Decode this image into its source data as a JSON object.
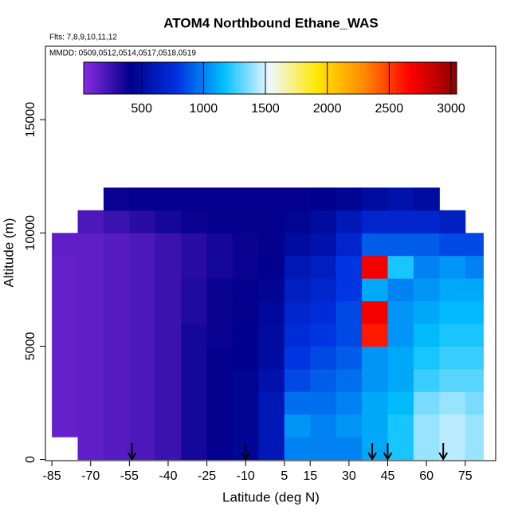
{
  "chart_data": {
    "type": "heatmap",
    "title": "ATOM4 Northbound Ethane_WAS",
    "subtitle": "Flts: 7,8,9,10,11,12",
    "annotation": "MMDD: 0509,0512,0514,0517,0518,0519",
    "x_label": "Latitude (deg N)",
    "y_label": "Altitude (m)",
    "xlim": [
      -87.5,
      86.8
    ],
    "ylim": [
      -50,
      18240
    ],
    "xticks": [
      -85,
      -70,
      -55,
      -40,
      -25,
      -10,
      5,
      15,
      30,
      45,
      60,
      75
    ],
    "yticks": [
      0,
      5000,
      10000,
      15000
    ],
    "x_edges": [
      -85,
      -75,
      -65,
      -55,
      -45,
      -35,
      -25,
      -15,
      -5,
      5,
      15,
      25,
      35,
      45,
      55,
      65,
      75,
      82
    ],
    "y_edges": [
      0,
      1000,
      2000,
      3000,
      4000,
      5000,
      6000,
      7000,
      8000,
      9000,
      10000,
      11000,
      12000
    ],
    "z": [
      [
        null,
        150,
        170,
        200,
        250,
        350,
        400,
        450,
        600,
        1000,
        1000,
        1000,
        1100,
        1200,
        1400,
        1450,
        1400
      ],
      [
        130,
        150,
        170,
        200,
        250,
        350,
        400,
        450,
        600,
        1050,
        1000,
        1050,
        1100,
        1200,
        1400,
        1450,
        1400
      ],
      [
        130,
        150,
        170,
        200,
        250,
        350,
        400,
        450,
        600,
        950,
        950,
        1000,
        1100,
        1150,
        1350,
        1400,
        1350
      ],
      [
        130,
        150,
        170,
        200,
        250,
        350,
        400,
        450,
        550,
        850,
        900,
        950,
        1050,
        1100,
        1250,
        1300,
        1300
      ],
      [
        130,
        150,
        170,
        200,
        250,
        350,
        400,
        420,
        500,
        800,
        850,
        900,
        1050,
        1100,
        1200,
        1250,
        1250
      ],
      [
        130,
        150,
        170,
        200,
        250,
        350,
        380,
        420,
        500,
        750,
        800,
        850,
        2600,
        1050,
        1150,
        1200,
        1200
      ],
      [
        130,
        150,
        170,
        200,
        250,
        320,
        380,
        400,
        480,
        700,
        750,
        850,
        2700,
        1050,
        1100,
        1150,
        1150
      ],
      [
        130,
        150,
        170,
        200,
        250,
        320,
        380,
        400,
        450,
        650,
        700,
        800,
        1100,
        1000,
        1050,
        1100,
        1100
      ],
      [
        130,
        150,
        170,
        200,
        250,
        300,
        350,
        380,
        420,
        600,
        650,
        800,
        2700,
        1200,
        1000,
        1050,
        1000
      ],
      [
        150,
        150,
        170,
        200,
        250,
        300,
        350,
        380,
        400,
        500,
        550,
        700,
        900,
        900,
        900,
        850,
        850
      ],
      [
        null,
        200,
        250,
        300,
        350,
        380,
        400,
        400,
        400,
        450,
        500,
        600,
        700,
        700,
        700,
        650,
        null
      ],
      [
        null,
        null,
        380,
        400,
        400,
        400,
        400,
        400,
        400,
        400,
        420,
        450,
        500,
        550,
        500,
        null,
        null
      ]
    ],
    "colorbar": {
      "lim": [
        32,
        3045
      ],
      "ticks": [
        500,
        1000,
        1500,
        2000,
        2500,
        3000
      ],
      "colors": [
        "#8a2be2",
        "#00008b",
        "#0030e0",
        "#00bfff",
        "#f0f8ff",
        "#ffe800",
        "#ff8c00",
        "#ff0000",
        "#8b0000"
      ]
    },
    "arrows_x": [
      -54,
      -10,
      39,
      45,
      66.5
    ]
  }
}
